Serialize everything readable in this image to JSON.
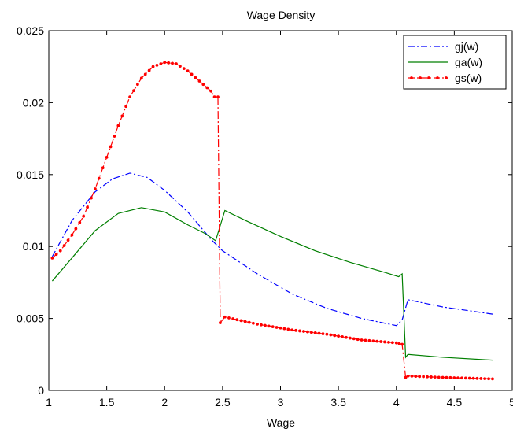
{
  "chart_data": {
    "type": "line",
    "title": "Wage Density",
    "xlabel": "Wage",
    "ylabel": "",
    "xlim": [
      1,
      5
    ],
    "ylim": [
      0,
      0.025
    ],
    "xticks": [
      1,
      1.5,
      2,
      2.5,
      3,
      3.5,
      4,
      4.5,
      5
    ],
    "xtick_labels": [
      "1",
      "1.5",
      "2",
      "2.5",
      "3",
      "3.5",
      "4",
      "4.5",
      "5"
    ],
    "yticks": [
      0,
      0.005,
      0.01,
      0.015,
      0.02,
      0.025
    ],
    "ytick_labels": [
      "0",
      "0.005",
      "0.01",
      "0.015",
      "0.02",
      "0.025"
    ],
    "grid": false,
    "legend_position": "top-right",
    "series": [
      {
        "name": "gj(w)",
        "color": "#0000ff",
        "style": "dash-dot",
        "markers": false,
        "points": [
          [
            1.03,
            0.0093
          ],
          [
            1.2,
            0.0118
          ],
          [
            1.4,
            0.0138
          ],
          [
            1.55,
            0.0147
          ],
          [
            1.7,
            0.0151
          ],
          [
            1.85,
            0.0148
          ],
          [
            2.0,
            0.0139
          ],
          [
            2.2,
            0.0124
          ],
          [
            2.4,
            0.0105
          ],
          [
            2.45,
            0.0101
          ],
          [
            2.5,
            0.0097
          ],
          [
            2.8,
            0.0081
          ],
          [
            3.1,
            0.0067
          ],
          [
            3.4,
            0.0057
          ],
          [
            3.7,
            0.005
          ],
          [
            4.0,
            0.0045
          ],
          [
            4.05,
            0.0049
          ],
          [
            4.1,
            0.0063
          ],
          [
            4.4,
            0.0058
          ],
          [
            4.83,
            0.0053
          ]
        ]
      },
      {
        "name": "ga(w)",
        "color": "#007f00",
        "style": "solid",
        "markers": false,
        "points": [
          [
            1.03,
            0.0076
          ],
          [
            1.2,
            0.0092
          ],
          [
            1.4,
            0.0111
          ],
          [
            1.6,
            0.0123
          ],
          [
            1.8,
            0.0127
          ],
          [
            2.0,
            0.0124
          ],
          [
            2.2,
            0.0115
          ],
          [
            2.35,
            0.0109
          ],
          [
            2.44,
            0.0104
          ],
          [
            2.52,
            0.0125
          ],
          [
            2.7,
            0.0118
          ],
          [
            3.0,
            0.0107
          ],
          [
            3.3,
            0.0097
          ],
          [
            3.6,
            0.0089
          ],
          [
            3.9,
            0.0082
          ],
          [
            4.02,
            0.0079
          ],
          [
            4.05,
            0.0081
          ],
          [
            4.08,
            0.0023
          ],
          [
            4.1,
            0.0025
          ],
          [
            4.4,
            0.0023
          ],
          [
            4.83,
            0.0021
          ]
        ]
      },
      {
        "name": "gs(w)",
        "color": "#ff0000",
        "style": "dash-dot",
        "markers": true,
        "points": [
          [
            1.03,
            0.0092
          ],
          [
            1.1,
            0.0097
          ],
          [
            1.2,
            0.0108
          ],
          [
            1.3,
            0.0121
          ],
          [
            1.4,
            0.014
          ],
          [
            1.5,
            0.0162
          ],
          [
            1.6,
            0.0184
          ],
          [
            1.7,
            0.0204
          ],
          [
            1.8,
            0.0217
          ],
          [
            1.9,
            0.0225
          ],
          [
            2.0,
            0.0228
          ],
          [
            2.1,
            0.0227
          ],
          [
            2.2,
            0.0222
          ],
          [
            2.3,
            0.0215
          ],
          [
            2.4,
            0.0208
          ],
          [
            2.43,
            0.0204
          ],
          [
            2.46,
            0.0204
          ],
          [
            2.48,
            0.0047
          ],
          [
            2.52,
            0.0051
          ],
          [
            2.8,
            0.0046
          ],
          [
            3.1,
            0.0042
          ],
          [
            3.4,
            0.0039
          ],
          [
            3.7,
            0.0035
          ],
          [
            4.0,
            0.0033
          ],
          [
            4.05,
            0.0032
          ],
          [
            4.08,
            0.0009
          ],
          [
            4.1,
            0.001
          ],
          [
            4.4,
            0.0009
          ],
          [
            4.83,
            0.0008
          ]
        ]
      }
    ]
  }
}
